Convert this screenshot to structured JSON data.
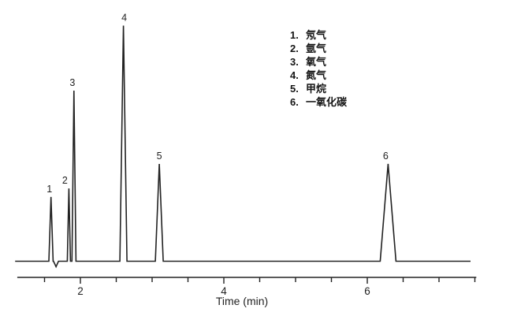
{
  "legend": {
    "items": [
      {
        "num": "1.",
        "label": "氖气"
      },
      {
        "num": "2.",
        "label": "氩气"
      },
      {
        "num": "3.",
        "label": "氧气"
      },
      {
        "num": "4.",
        "label": "氮气"
      },
      {
        "num": "5.",
        "label": "甲烷"
      },
      {
        "num": "6.",
        "label": "一氧化碳"
      }
    ]
  },
  "chart_data": {
    "type": "line",
    "title": "",
    "xlabel": "Time (min)",
    "ylabel": "",
    "x_axis": {
      "labeled_ticks": [
        2,
        4,
        6
      ],
      "minor_tick_step": 0.5,
      "minor_tick_start": 1.5,
      "minor_tick_end": 7.5,
      "axis_time_start": 1.12,
      "axis_time_end": 7.52,
      "trace_time_start": 1.09,
      "trace_time_end": 7.44
    },
    "y_axis": {
      "visible": false,
      "note": "no y scale shown; heights relative to tallest peak"
    },
    "grid": false,
    "legend_position": "top-right",
    "trace_color": "#222222",
    "peaks": [
      {
        "label": "1",
        "analyte_zh": "氖气",
        "time_min": 1.59,
        "height_rel": 0.273,
        "halfwidth_min": 0.03,
        "label_dx": -2
      },
      {
        "label": "2",
        "analyte_zh": "氩气",
        "time_min": 1.84,
        "height_rel": 0.309,
        "halfwidth_min": 0.022,
        "label_dx": -5
      },
      {
        "label": "3",
        "analyte_zh": "氧气",
        "time_min": 1.91,
        "height_rel": 0.724,
        "halfwidth_min": 0.028,
        "label_dx": -2
      },
      {
        "label": "4",
        "analyte_zh": "氮气",
        "time_min": 2.6,
        "height_rel": 1.0,
        "halfwidth_min": 0.05,
        "label_dx": 1
      },
      {
        "label": "5",
        "analyte_zh": "甲烷",
        "time_min": 3.1,
        "height_rel": 0.413,
        "halfwidth_min": 0.055,
        "label_dx": 0
      },
      {
        "label": "6",
        "analyte_zh": "一氧化碳",
        "time_min": 6.29,
        "height_rel": 0.413,
        "halfwidth_min": 0.11,
        "label_dx": -3
      }
    ],
    "baseline_dip": {
      "time_min": 1.66,
      "depth_rel": 0.023,
      "halfwidth_min": 0.035
    }
  }
}
